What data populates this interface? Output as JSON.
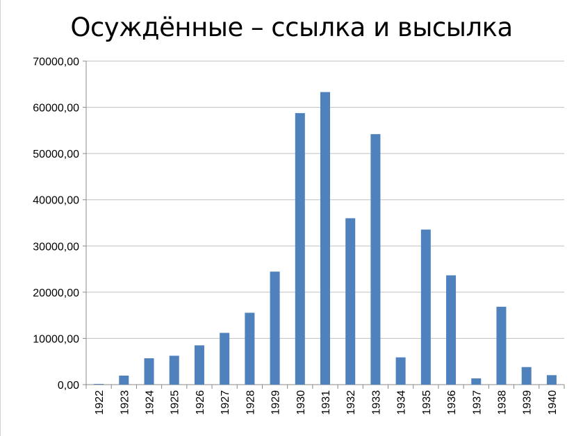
{
  "chart_data": {
    "type": "bar",
    "title": "Осуждённые – ссылка и высылка",
    "xlabel": "",
    "ylabel": "",
    "categories": [
      "1922",
      "1923",
      "1924",
      "1925",
      "1926",
      "1927",
      "1928",
      "1929",
      "1930",
      "1931",
      "1932",
      "1933",
      "1934",
      "1935",
      "1936",
      "1937",
      "1938",
      "1939",
      "1940"
    ],
    "values": [
      150,
      1950,
      5700,
      6250,
      8500,
      11200,
      15550,
      24450,
      58750,
      63300,
      36000,
      54200,
      5900,
      33550,
      23650,
      1350,
      16850,
      3800,
      2050
    ],
    "ylim": [
      0,
      70000
    ],
    "yticks": [
      "0,00",
      "10000,00",
      "20000,00",
      "30000,00",
      "40000,00",
      "50000,00",
      "60000,00",
      "70000,00"
    ],
    "grid": true,
    "legend": "none",
    "bar_color": "#4f81bd",
    "grid_color": "#bfbfbf"
  }
}
